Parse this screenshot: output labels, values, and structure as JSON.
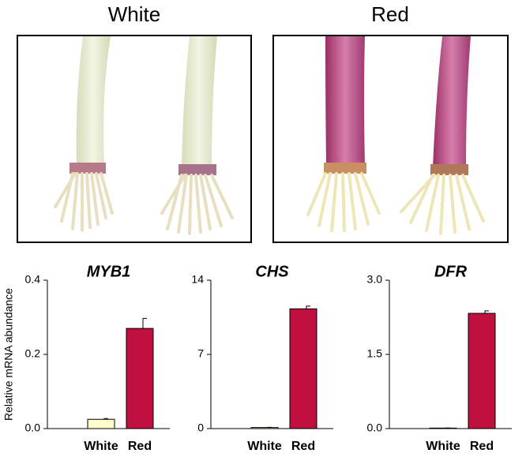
{
  "panels": [
    {
      "label": "White"
    },
    {
      "label": "Red"
    }
  ],
  "chart_data": [
    {
      "type": "bar",
      "title": "MYB1",
      "ylabel": "Relative mRNA abundance",
      "categories": [
        "White",
        "Red"
      ],
      "values": [
        0.025,
        0.27
      ],
      "errors": [
        0.002,
        0.027
      ],
      "colors": [
        "#ffffcc",
        "#c0103f"
      ],
      "ylim": [
        0,
        0.4
      ],
      "yticks": [
        {
          "value": 0,
          "label": "0.0"
        },
        0.2,
        0.4
      ]
    },
    {
      "type": "bar",
      "title": "CHS",
      "categories": [
        "White",
        "Red"
      ],
      "values": [
        0.1,
        11.3
      ],
      "errors": [
        0.02,
        0.25
      ],
      "colors": [
        "#ffffcc",
        "#c0103f"
      ],
      "ylim": [
        0,
        14
      ],
      "yticks": [
        0,
        7,
        14
      ]
    },
    {
      "type": "bar",
      "title": "DFR",
      "categories": [
        "White",
        "Red"
      ],
      "values": [
        0.01,
        2.33
      ],
      "errors": [
        0.002,
        0.05
      ],
      "colors": [
        "#ffffcc",
        "#c0103f"
      ],
      "ylim": [
        0,
        3
      ],
      "yticks": [
        {
          "value": 0,
          "label": "0.0"
        },
        1.5,
        {
          "value": 3,
          "label": "3.0"
        }
      ]
    }
  ]
}
